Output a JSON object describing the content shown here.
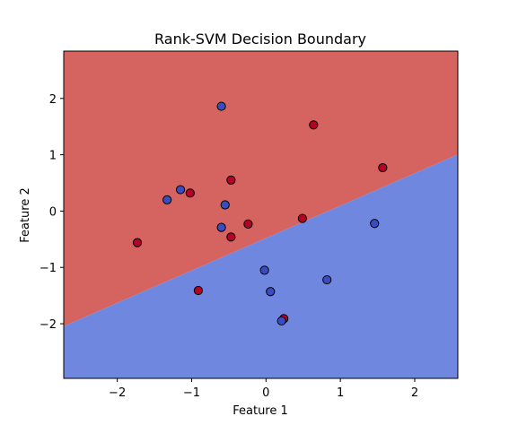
{
  "chart_data": {
    "type": "scatter",
    "title": "Rank-SVM Decision Boundary",
    "xlabel": "Feature 1",
    "ylabel": "Feature 2",
    "xlim": [
      -2.72,
      2.58
    ],
    "ylim": [
      -2.97,
      2.84
    ],
    "grid": false,
    "x_ticks": [
      -2,
      -1,
      0,
      1,
      2
    ],
    "y_ticks": [
      -2,
      -1,
      0,
      1,
      2
    ],
    "x_tick_labels": [
      "−2",
      "−1",
      "0",
      "1",
      "2"
    ],
    "y_tick_labels": [
      "−2",
      "−1",
      "0",
      "1",
      "2"
    ],
    "boundary": {
      "slope": 0.575,
      "intercept": -0.48
    },
    "colors": {
      "region_above": "#d5635f",
      "region_below": "#7087df",
      "class_red": "#b40426",
      "class_blue": "#3b4cc0",
      "edge": "#000000"
    },
    "series": [
      {
        "name": "class-red",
        "points": [
          {
            "x": 0.64,
            "y": 1.53
          },
          {
            "x": 1.57,
            "y": 0.77
          },
          {
            "x": -0.47,
            "y": 0.55
          },
          {
            "x": -1.02,
            "y": 0.32
          },
          {
            "x": -0.24,
            "y": -0.23
          },
          {
            "x": 0.49,
            "y": -0.13
          },
          {
            "x": -0.47,
            "y": -0.46
          },
          {
            "x": -1.73,
            "y": -0.56
          },
          {
            "x": -0.91,
            "y": -1.41
          },
          {
            "x": 0.24,
            "y": -1.91
          }
        ]
      },
      {
        "name": "class-blue",
        "points": [
          {
            "x": -0.6,
            "y": 1.86
          },
          {
            "x": -1.15,
            "y": 0.38
          },
          {
            "x": -1.33,
            "y": 0.2
          },
          {
            "x": -0.55,
            "y": 0.11
          },
          {
            "x": -0.6,
            "y": -0.29
          },
          {
            "x": 1.46,
            "y": -0.22
          },
          {
            "x": -0.02,
            "y": -1.05
          },
          {
            "x": 0.06,
            "y": -1.43
          },
          {
            "x": 0.82,
            "y": -1.22
          },
          {
            "x": 0.21,
            "y": -1.95
          }
        ]
      }
    ]
  }
}
